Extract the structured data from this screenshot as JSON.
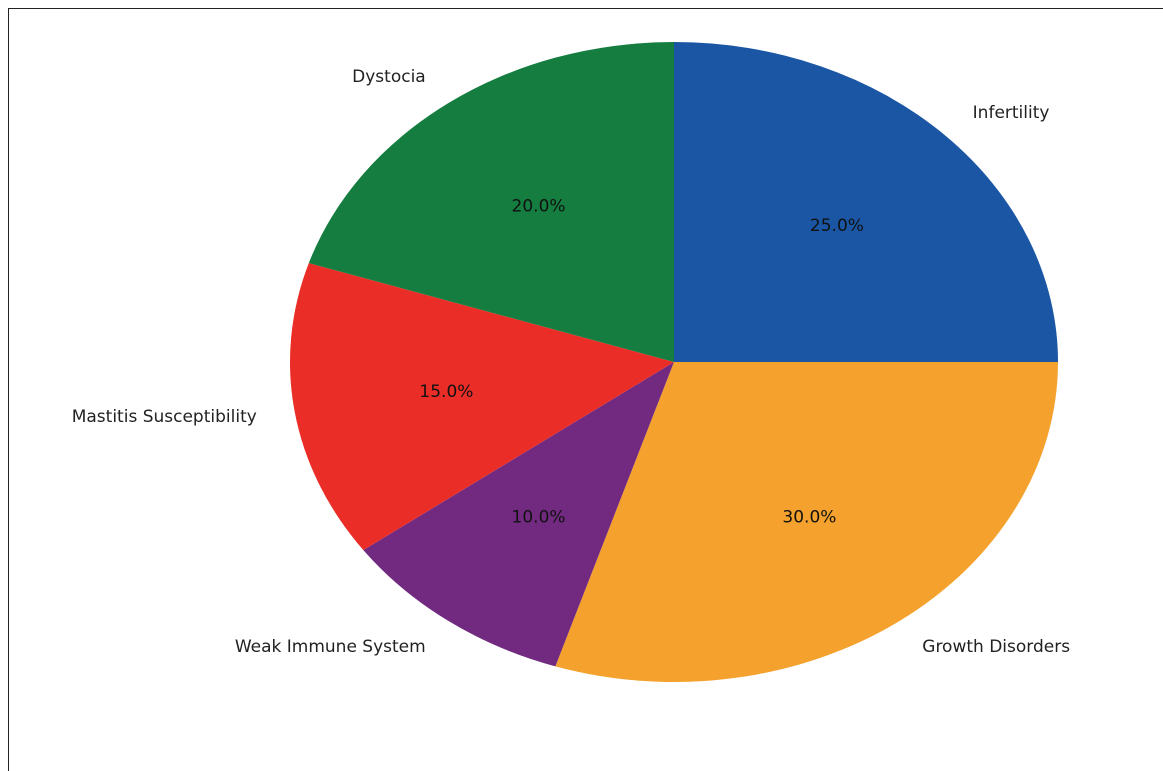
{
  "chart_data": {
    "type": "pie",
    "title": "",
    "start_angle_deg": 90,
    "direction": "clockwise",
    "autopct_format": "{:.1f}%",
    "slices": [
      {
        "label": "Infertility",
        "value": 25.0,
        "pct_label": "25.0%",
        "color": "#1a56a4"
      },
      {
        "label": "Growth Disorders",
        "value": 30.0,
        "pct_label": "30.0%",
        "color": "#f4a22d"
      },
      {
        "label": "Weak Immune System",
        "value": 10.0,
        "pct_label": "10.0%",
        "color": "#712a80"
      },
      {
        "label": "Mastitis Susceptibility",
        "value": 15.0,
        "pct_label": "15.0%",
        "color": "#ea2e27"
      },
      {
        "label": "Dystocia",
        "value": 20.0,
        "pct_label": "20.0%",
        "color": "#147d3f"
      }
    ]
  }
}
